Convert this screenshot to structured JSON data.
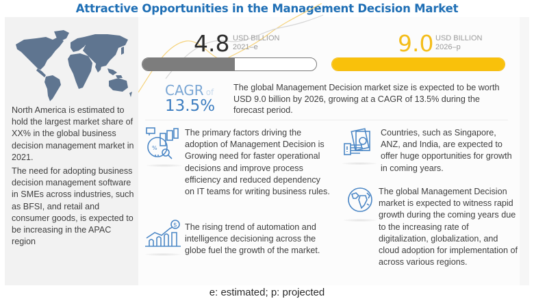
{
  "title": "Attractive Opportunities in the Management Decision Market",
  "left_panel": {
    "map_icon": "world-map",
    "paragraphs": [
      "North America is estimated to hold the largest market share of XX% in the global business decision management market in 2021.",
      "The need for adopting business decision management software in SMEs across industries, such as BFSI, and retail and consumer goods, is expected to be increasing in the APAC region"
    ]
  },
  "metrics": [
    {
      "value": "4.8",
      "unit": "USD BILLION",
      "year": "2021–e",
      "bar_fill_ratio": 0.533,
      "color": "#7d7d7d"
    },
    {
      "value": "9.0",
      "unit": "USD BILLION",
      "year": "2026–p",
      "bar_fill_ratio": 1.0,
      "color": "#f9c10b"
    }
  ],
  "cagr": {
    "label": "CAGR",
    "of": "of",
    "value": "13.5%",
    "description": "The global Management Decision market size is expected to be worth USD 9.0 billion by 2026, growing at a CAGR of 13.5% during the forecast period."
  },
  "cards": [
    {
      "icon": "analytics-icon",
      "text": "The primary factors driving the adoption of Management Decision is Growing need for faster operational decisions and improve process efficiency and reduced dependency on IT teams for writing business rules."
    },
    {
      "icon": "money-hand-icon",
      "text": "Countries, such as Singapore, ANZ,  and India, are expected to offer huge opportunities for growth in coming years."
    },
    {
      "icon": "growth-chart-icon",
      "text": "The rising trend of automation and intelligence decisioning across the globe fuel the growth of the market."
    },
    {
      "icon": "globe-icon",
      "text": "The global Management Decision market is expected to witness rapid growth during the coming years due to the increasing rate of digitalization, globalization, and cloud adoption for implementation of across various regions."
    }
  ],
  "colors": {
    "title": "#1f6fb5",
    "accent_yellow": "#f9c10b",
    "accent_grey": "#7d7d7d",
    "icon_blue": "#4a86c5",
    "map": "#5f7590"
  },
  "footnote": "e: estimated; p: projected"
}
